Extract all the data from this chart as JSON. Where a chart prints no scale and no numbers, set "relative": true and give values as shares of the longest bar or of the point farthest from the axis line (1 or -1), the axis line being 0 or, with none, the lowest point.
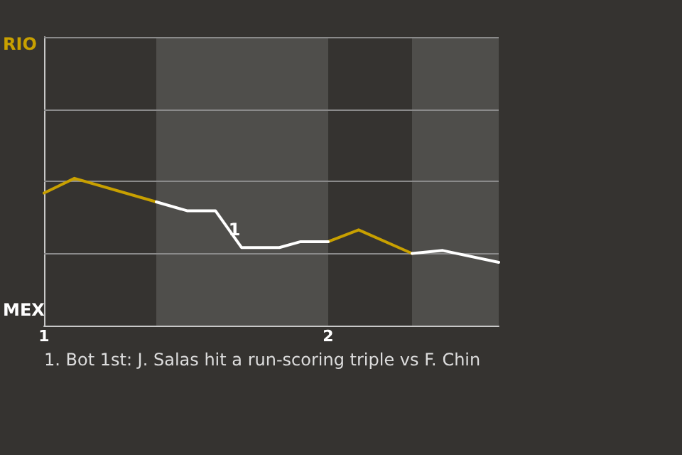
{
  "chart_data": {
    "type": "line",
    "relative": true,
    "x": [
      1.0,
      1.107,
      1.395,
      1.503,
      1.603,
      1.695,
      1.828,
      1.903,
      2.0,
      2.107,
      2.295,
      2.403,
      2.6
    ],
    "series": [
      {
        "color": "#c8a000",
        "values": [
          0.9,
          1,
          0.84,
          null,
          null,
          null,
          null,
          null,
          0.57,
          0.65,
          0.49,
          null,
          null
        ]
      },
      {
        "color": "#ffffff",
        "values": [
          null,
          null,
          0.84,
          0.78,
          0.78,
          0.53,
          0.53,
          0.57,
          0.57,
          null,
          0.49,
          0.51,
          0.43
        ]
      }
    ],
    "xlim": [
      1,
      2.6
    ],
    "xticks": [
      1,
      2
    ],
    "ref_lines": [
      {
        "axis": "y",
        "value": 0.49,
        "color": "#8a8a8a"
      },
      {
        "axis": "y",
        "value": 0.98,
        "color": "#8a8a8a"
      },
      {
        "axis": "y",
        "value": 1.47,
        "color": "#8a8a8a"
      },
      {
        "axis": "y",
        "value": 1.96,
        "color": "#8a8a8a"
      }
    ],
    "marker": "none",
    "bands": [
      {
        "axis": "x",
        "from": 1.395,
        "to": 2.0,
        "color": "#4f4e4b"
      },
      {
        "axis": "x",
        "from": 2.295,
        "to": 2.6,
        "color": "#4f4e4b"
      }
    ],
    "annotations": [
      "RIO",
      "MEX",
      {
        "text": "1",
        "x": 1.67,
        "y": 0.65
      },
      "1. Bot 1st: J. Salas hit a run-scoring triple vs F. Chin"
    ]
  }
}
